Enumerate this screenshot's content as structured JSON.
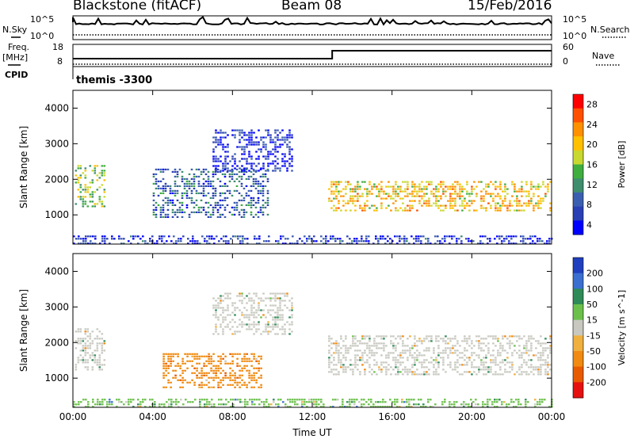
{
  "header": {
    "station": "Blackstone (fitACF)",
    "beam": "Beam 08",
    "date": "15/Feb/2016"
  },
  "top_panels": {
    "nsky_label": "N.Sky",
    "nsky_ticks": [
      "10^5",
      "10^0"
    ],
    "nsearch_label": "N.Search",
    "nsearch_ticks": [
      "10^5",
      "10^0"
    ],
    "freq_label_1": "Freq.",
    "freq_label_2": "[MHz]",
    "freq_ticks": [
      "18",
      "8"
    ],
    "nave_label": "Nave",
    "nave_ticks": [
      "60",
      "0"
    ],
    "cpid_label": "CPID",
    "cpid_value": "themis -3300"
  },
  "chart_data": [
    {
      "type": "heatmap",
      "panel": "power",
      "xlabel": "Time UT",
      "ylabel": "Slant Range [km]",
      "x_ticks": [
        "00:00",
        "04:00",
        "08:00",
        "12:00",
        "16:00",
        "20:00",
        "00:00"
      ],
      "y_ticks": [
        1000,
        2000,
        3000,
        4000
      ],
      "ylim": [
        180,
        4500
      ],
      "colorbar_label": "Power [dB]",
      "colorbar_ticks": [
        4,
        8,
        12,
        16,
        20,
        24,
        28
      ],
      "colors": [
        "#0000ff",
        "#2a3fb4",
        "#3b5fb0",
        "#3e8e6e",
        "#3fae3f",
        "#c8d830",
        "#ffc000",
        "#ff9000",
        "#ff5000",
        "#ff0000"
      ],
      "regions": [
        {
          "name": "early-arc",
          "x": [
            0.1,
            1.6
          ],
          "y": [
            1200,
            2400
          ],
          "power": 16
        },
        {
          "name": "morning-band",
          "x": [
            4.0,
            9.8
          ],
          "y": [
            900,
            2300
          ],
          "power": 9
        },
        {
          "name": "pre-noon-patch",
          "x": [
            7.0,
            11.0
          ],
          "y": [
            2200,
            3400
          ],
          "power": 5
        },
        {
          "name": "afternoon-band",
          "x": [
            12.8,
            23.9
          ],
          "y": [
            1100,
            1950
          ],
          "power": 20
        },
        {
          "name": "near-range",
          "x": [
            0.0,
            24.0
          ],
          "y": [
            180,
            420
          ],
          "power": 6
        }
      ]
    },
    {
      "type": "heatmap",
      "panel": "velocity",
      "xlabel": "Time UT",
      "ylabel": "Slant Range [km]",
      "x_ticks": [
        "00:00",
        "04:00",
        "08:00",
        "12:00",
        "16:00",
        "20:00",
        "00:00"
      ],
      "y_ticks": [
        1000,
        2000,
        3000,
        4000
      ],
      "ylim": [
        180,
        4500
      ],
      "colorbar_label": "Velocity [m s^-1]",
      "colorbar_ticks": [
        "200",
        "100",
        "50",
        "15",
        "-15",
        "-50",
        "-100",
        "-200"
      ],
      "colors": [
        "#1f3fbf",
        "#3b6fd0",
        "#2e8b57",
        "#6bc04b",
        "#c8c8c0",
        "#f0b040",
        "#f08a10",
        "#e85a00",
        "#e61010"
      ],
      "regions": [
        {
          "name": "early-arc",
          "x": [
            0.1,
            1.6
          ],
          "y": [
            1200,
            2400
          ],
          "velocity": -5
        },
        {
          "name": "morning-band",
          "x": [
            4.5,
            9.5
          ],
          "y": [
            700,
            1700
          ],
          "velocity": -70
        },
        {
          "name": "pre-noon-patch",
          "x": [
            7.0,
            11.0
          ],
          "y": [
            2200,
            3400
          ],
          "velocity": 0
        },
        {
          "name": "afternoon-band",
          "x": [
            12.8,
            23.9
          ],
          "y": [
            1100,
            2200
          ],
          "velocity": 0
        },
        {
          "name": "near-range",
          "x": [
            0.0,
            24.0
          ],
          "y": [
            180,
            420
          ],
          "velocity": 30
        }
      ]
    }
  ]
}
